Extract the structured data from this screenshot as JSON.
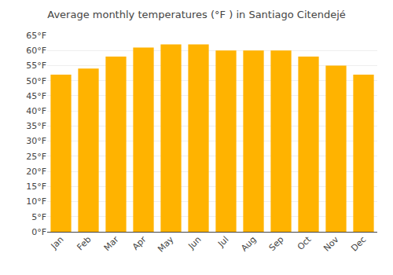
{
  "chart_data": {
    "type": "bar",
    "title": "Average monthly temperatures (°F ) in Santiago Citendejé",
    "categories": [
      "Jan",
      "Feb",
      "Mar",
      "Apr",
      "May",
      "Jun",
      "Jul",
      "Aug",
      "Sep",
      "Oct",
      "Nov",
      "Dec"
    ],
    "values": [
      52,
      54,
      58,
      61,
      62,
      62,
      60,
      60,
      60,
      58,
      55,
      52
    ],
    "color": "#FFB300",
    "ylim": [
      0,
      65
    ],
    "yticks": [
      {
        "value": 0,
        "label": "0°F"
      },
      {
        "value": 5,
        "label": "5°F"
      },
      {
        "value": 10,
        "label": "10°F"
      },
      {
        "value": 15,
        "label": "15°F"
      },
      {
        "value": 20,
        "label": "20°F"
      },
      {
        "value": 25,
        "label": "25°F"
      },
      {
        "value": 30,
        "label": "30°F"
      },
      {
        "value": 35,
        "label": "35°F"
      },
      {
        "value": 40,
        "label": "40°F"
      },
      {
        "value": 45,
        "label": "45°F"
      },
      {
        "value": 50,
        "label": "50°F"
      },
      {
        "value": 55,
        "label": "55°F"
      },
      {
        "value": 60,
        "label": "60°F"
      },
      {
        "value": 65,
        "label": "65°F"
      }
    ],
    "grid": true
  }
}
